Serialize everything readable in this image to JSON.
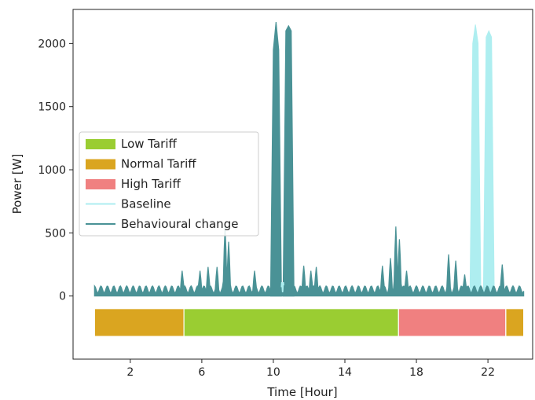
{
  "chart_data": {
    "type": "area",
    "xlabel": "Time [Hour]",
    "ylabel": "Power [W]",
    "xlim": [
      -1.2,
      24.5
    ],
    "ylim": [
      -500,
      2270
    ],
    "xticks": [
      2,
      6,
      10,
      14,
      18,
      22
    ],
    "yticks": [
      0,
      500,
      1000,
      1500,
      2000
    ],
    "grid": false,
    "legend_position": "center-left",
    "legend": [
      {
        "label": "Low Tariff",
        "kind": "patch",
        "color": "#9acd32"
      },
      {
        "label": "Normal Tariff",
        "kind": "patch",
        "color": "#daa520"
      },
      {
        "label": "High Tariff",
        "kind": "patch",
        "color": "#f08080"
      },
      {
        "label": "Baseline",
        "kind": "line",
        "color": "#aeeef0"
      },
      {
        "label": "Behavioural change",
        "kind": "line",
        "color": "#4a9296"
      }
    ],
    "tariff_bands": [
      {
        "name": "Normal Tariff",
        "start": 0,
        "end": 5,
        "color": "#daa520"
      },
      {
        "name": "Low Tariff",
        "start": 5,
        "end": 17,
        "color": "#9acd32"
      },
      {
        "name": "High Tariff",
        "start": 17,
        "end": 23,
        "color": "#f08080"
      },
      {
        "name": "Normal Tariff",
        "start": 23,
        "end": 24,
        "color": "#daa520"
      }
    ],
    "baseline_spikes": [
      {
        "x": [
          21.0,
          21.15,
          21.3,
          21.45,
          21.6
        ],
        "y": [
          60,
          2000,
          2150,
          2000,
          60
        ]
      },
      {
        "x": [
          21.75,
          21.9,
          22.05,
          22.2,
          22.35
        ],
        "y": [
          60,
          2050,
          2100,
          2050,
          60
        ]
      }
    ],
    "behavioural_spikes": [
      {
        "x": [
          9.85,
          10.0,
          10.15,
          10.3,
          10.45
        ],
        "y": [
          60,
          1950,
          2170,
          1950,
          60
        ]
      },
      {
        "x": [
          10.55,
          10.7,
          10.85,
          11.0,
          11.15
        ],
        "y": [
          60,
          2100,
          2140,
          2100,
          60
        ]
      }
    ],
    "behavioural_bumps": [
      {
        "x": 4.9,
        "y": 200
      },
      {
        "x": 5.9,
        "y": 200
      },
      {
        "x": 6.35,
        "y": 230
      },
      {
        "x": 6.85,
        "y": 230
      },
      {
        "x": 7.3,
        "y": 550
      },
      {
        "x": 7.5,
        "y": 430
      },
      {
        "x": 8.95,
        "y": 200
      },
      {
        "x": 11.7,
        "y": 240
      },
      {
        "x": 12.1,
        "y": 200
      },
      {
        "x": 12.4,
        "y": 230
      },
      {
        "x": 16.1,
        "y": 240
      },
      {
        "x": 16.55,
        "y": 300
      },
      {
        "x": 16.85,
        "y": 550
      },
      {
        "x": 17.05,
        "y": 450
      },
      {
        "x": 17.45,
        "y": 200
      },
      {
        "x": 19.8,
        "y": 330
      },
      {
        "x": 20.2,
        "y": 280
      },
      {
        "x": 20.7,
        "y": 170
      },
      {
        "x": 22.8,
        "y": 250
      }
    ],
    "base_level": 25,
    "ripple_level": 80
  }
}
